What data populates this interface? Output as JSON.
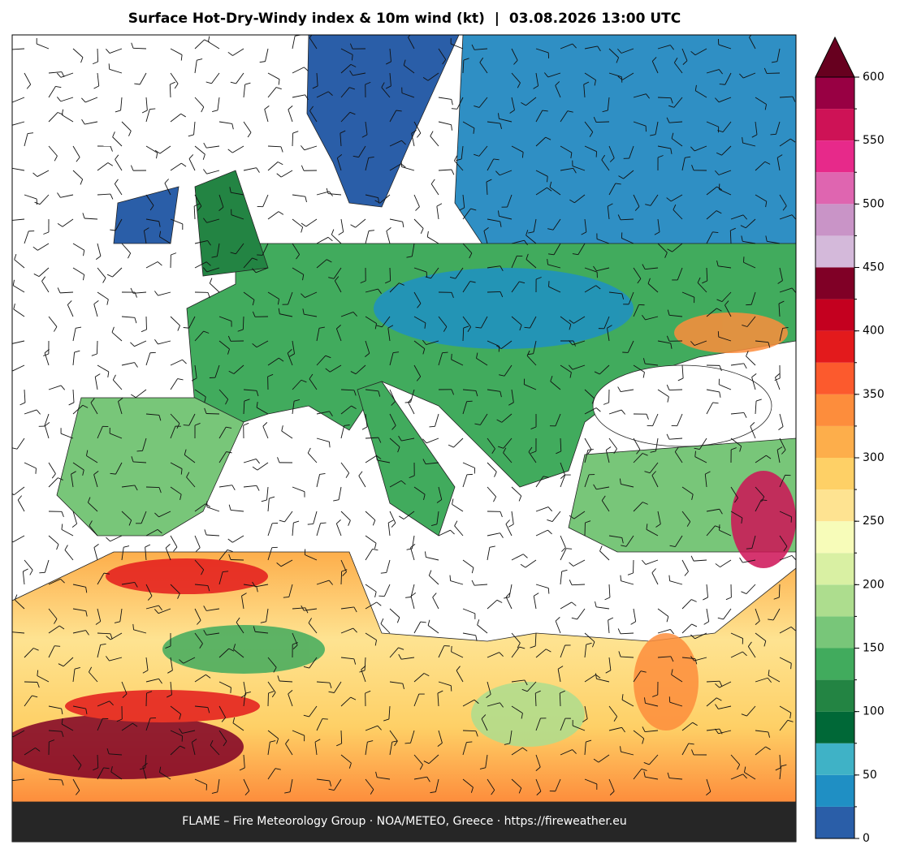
{
  "title": "Surface Hot-Dry-Windy index & 10m wind (kt)  |  03.08.2026 13:00 UTC",
  "footer": "FLAME – Fire Meteorology Group · NOA/METEO, Greece · https://fireweather.eu",
  "colorbar": {
    "bounds": [
      0,
      25,
      50,
      75,
      100,
      125,
      150,
      175,
      200,
      225,
      250,
      275,
      300,
      325,
      350,
      375,
      400,
      425,
      450,
      475,
      500,
      525,
      550,
      575,
      600
    ],
    "colors": [
      "#2a5ea8",
      "#1f8fc4",
      "#3fb2c6",
      "#006837",
      "#238443",
      "#41ab5d",
      "#78c679",
      "#addd8e",
      "#d9f0a3",
      "#f7fcb9",
      "#fee391",
      "#fed066",
      "#fdae4b",
      "#fd8d3c",
      "#fc5a2d",
      "#e31a1c",
      "#c4001f",
      "#800026",
      "#d4b9da",
      "#c994c7",
      "#df65b0",
      "#e7298a",
      "#ce1256",
      "#980043"
    ],
    "extend_color": "#67001f",
    "ticks": [
      0,
      50,
      100,
      150,
      200,
      250,
      300,
      350,
      400,
      450,
      500,
      550,
      600
    ]
  }
}
